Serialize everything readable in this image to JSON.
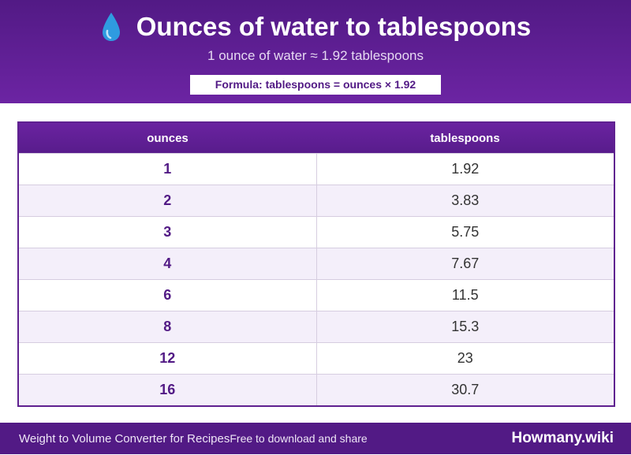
{
  "header": {
    "title": "Ounces of water to tablespoons",
    "icon": "water-drop-icon",
    "subtitle": "1 ounce of water ≈ 1.92 tablespoons",
    "formula": "Formula: tablespoons = ounces × 1.92"
  },
  "table": {
    "columns": [
      "ounces",
      "tablespoons"
    ],
    "rows": [
      {
        "ounces": "1",
        "tablespoons": "1.92"
      },
      {
        "ounces": "2",
        "tablespoons": "3.83"
      },
      {
        "ounces": "3",
        "tablespoons": "5.75"
      },
      {
        "ounces": "4",
        "tablespoons": "7.67"
      },
      {
        "ounces": "6",
        "tablespoons": "11.5"
      },
      {
        "ounces": "8",
        "tablespoons": "15.3"
      },
      {
        "ounces": "12",
        "tablespoons": "23"
      },
      {
        "ounces": "16",
        "tablespoons": "30.7"
      }
    ]
  },
  "footer": {
    "left": "Weight to Volume Converter for Recipes",
    "tagline": "Free to download and share",
    "brand": "Howmany.wiki"
  },
  "colors": {
    "brand": "#521a85",
    "accent": "#6c24a3",
    "row_alt": "#f4effa",
    "drop": "#2f9be0"
  }
}
